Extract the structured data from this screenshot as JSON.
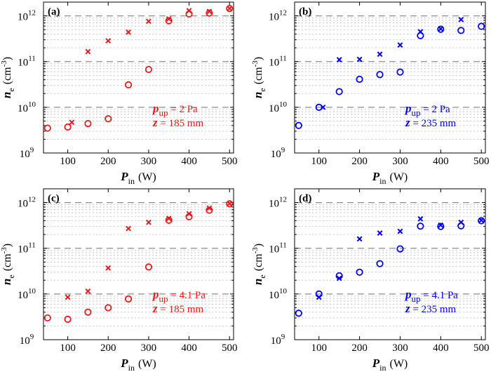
{
  "chart_data": [
    {
      "type": "scatter",
      "panel_label": "(a)",
      "color": "#e41a1c",
      "xlabel": {
        "main": "P",
        "sub": "in",
        "unit": "(W)"
      },
      "ylabel": {
        "main": "n",
        "sub": "e",
        "unit_open": "(cm",
        "unit_sup": "-3",
        "unit_close": ")"
      },
      "xlim": [
        40,
        510
      ],
      "ylim": [
        1000000000.0,
        2000000000000.0
      ],
      "yscale": "log",
      "xticks": [
        "100",
        "200",
        "300",
        "400",
        "500"
      ],
      "yticks": [
        {
          "base": "10",
          "exp": "9"
        },
        {
          "base": "10",
          "exp": "10"
        },
        {
          "base": "10",
          "exp": "11"
        },
        {
          "base": "10",
          "exp": "12"
        }
      ],
      "grid": true,
      "annotation": {
        "p_main": "p",
        "p_sub": "up",
        "p_value": " = 2 Pa",
        "z_main": "z",
        "z_value": " = 185 mm"
      },
      "series": [
        {
          "marker": "x",
          "points": [
            [
              110,
              4700000000.0
            ],
            [
              150,
              165000000000.0
            ],
            [
              200,
              285000000000.0
            ],
            [
              250,
              440000000000.0
            ],
            [
              300,
              760000000000.0
            ],
            [
              350,
              860000000000.0
            ],
            [
              400,
              1300000000000.0
            ],
            [
              450,
              1250000000000.0
            ],
            [
              500,
              1450000000000.0
            ]
          ]
        },
        {
          "marker": "o",
          "points": [
            [
              50,
              3500000000.0
            ],
            [
              100,
              3700000000.0
            ],
            [
              150,
              4400000000.0
            ],
            [
              200,
              5600000000.0
            ],
            [
              250,
              31000000000.0
            ],
            [
              300,
              67000000000.0
            ],
            [
              350,
              780000000000.0
            ],
            [
              400,
              1100000000000.0
            ],
            [
              450,
              1150000000000.0
            ],
            [
              500,
              1450000000000.0
            ]
          ]
        }
      ]
    },
    {
      "type": "scatter",
      "panel_label": "(b)",
      "color": "#0000ee",
      "xlabel": {
        "main": "P",
        "sub": "in",
        "unit": "(W)"
      },
      "ylabel": {
        "main": "n",
        "sub": "e",
        "unit_open": "(cm",
        "unit_sup": "-3",
        "unit_close": ")"
      },
      "xlim": [
        40,
        510
      ],
      "ylim": [
        1000000000.0,
        2000000000000.0
      ],
      "yscale": "log",
      "xticks": [
        "100",
        "200",
        "300",
        "400",
        "500"
      ],
      "yticks": [
        {
          "base": "10",
          "exp": "9"
        },
        {
          "base": "10",
          "exp": "10"
        },
        {
          "base": "10",
          "exp": "11"
        },
        {
          "base": "10",
          "exp": "12"
        }
      ],
      "grid": true,
      "annotation": {
        "p_main": "p",
        "p_sub": "up",
        "p_value": " = 2 Pa",
        "z_main": "z",
        "z_value": " = 235 mm"
      },
      "series": [
        {
          "marker": "x",
          "points": [
            [
              110,
              10000000000.0
            ],
            [
              150,
              110000000000.0
            ],
            [
              200,
              112000000000.0
            ],
            [
              250,
              145000000000.0
            ],
            [
              300,
              230000000000.0
            ],
            [
              350,
              450000000000.0
            ],
            [
              400,
              520000000000.0
            ],
            [
              450,
              830000000000.0
            ]
          ]
        },
        {
          "marker": "o",
          "points": [
            [
              50,
              4000000000.0
            ],
            [
              100,
              10000000000.0
            ],
            [
              150,
              22000000000.0
            ],
            [
              200,
              41000000000.0
            ],
            [
              250,
              52000000000.0
            ],
            [
              300,
              59000000000.0
            ],
            [
              350,
              370000000000.0
            ],
            [
              400,
              510000000000.0
            ],
            [
              450,
              480000000000.0
            ],
            [
              500,
              590000000000.0
            ]
          ]
        }
      ]
    },
    {
      "type": "scatter",
      "panel_label": "(c)",
      "color": "#e41a1c",
      "xlabel": {
        "main": "P",
        "sub": "in",
        "unit": "(W)"
      },
      "ylabel": {
        "main": "n",
        "sub": "e",
        "unit_open": "(cm",
        "unit_sup": "-3",
        "unit_close": ")"
      },
      "xlim": [
        40,
        510
      ],
      "ylim": [
        1000000000.0,
        2000000000000.0
      ],
      "yscale": "log",
      "xticks": [
        "100",
        "200",
        "300",
        "400",
        "500"
      ],
      "yticks": [
        {
          "base": "10",
          "exp": "9"
        },
        {
          "base": "10",
          "exp": "10"
        },
        {
          "base": "10",
          "exp": "11"
        },
        {
          "base": "10",
          "exp": "12"
        }
      ],
      "grid": true,
      "annotation": {
        "p_main": "p",
        "p_sub": "up",
        "p_value": " = 4.1 Pa",
        "z_main": "z",
        "z_value": " = 185 mm"
      },
      "series": [
        {
          "marker": "x",
          "points": [
            [
              100,
              8500000000.0
            ],
            [
              150,
              11500000000.0
            ],
            [
              200,
              37000000000.0
            ],
            [
              250,
              270000000000.0
            ],
            [
              300,
              370000000000.0
            ],
            [
              350,
              450000000000.0
            ],
            [
              400,
              570000000000.0
            ],
            [
              450,
              760000000000.0
            ],
            [
              500,
              950000000000.0
            ]
          ]
        },
        {
          "marker": "o",
          "points": [
            [
              50,
              3000000000.0
            ],
            [
              100,
              2800000000.0
            ],
            [
              150,
              4000000000.0
            ],
            [
              200,
              5000000000.0
            ],
            [
              250,
              7800000000.0
            ],
            [
              300,
              39000000000.0
            ],
            [
              350,
              410000000000.0
            ],
            [
              400,
              490000000000.0
            ],
            [
              450,
              680000000000.0
            ],
            [
              500,
              940000000000.0
            ]
          ]
        }
      ]
    },
    {
      "type": "scatter",
      "panel_label": "(d)",
      "color": "#0000ee",
      "xlabel": {
        "main": "P",
        "sub": "in",
        "unit": "(W)"
      },
      "ylabel": {
        "main": "n",
        "sub": "e",
        "unit_open": "(cm",
        "unit_sup": "-3",
        "unit_close": ")"
      },
      "xlim": [
        40,
        510
      ],
      "ylim": [
        1000000000.0,
        2000000000000.0
      ],
      "yscale": "log",
      "xticks": [
        "100",
        "200",
        "300",
        "400",
        "500"
      ],
      "yticks": [
        {
          "base": "10",
          "exp": "9"
        },
        {
          "base": "10",
          "exp": "10"
        },
        {
          "base": "10",
          "exp": "11"
        },
        {
          "base": "10",
          "exp": "12"
        }
      ],
      "grid": true,
      "annotation": {
        "p_main": "p",
        "p_sub": "up",
        "p_value": " = 4.1 Pa",
        "z_main": "z",
        "z_value": " = 235 mm"
      },
      "series": [
        {
          "marker": "x",
          "points": [
            [
              100,
              8500000000.0
            ],
            [
              150,
              22000000000.0
            ],
            [
              200,
              160000000000.0
            ],
            [
              250,
              215000000000.0
            ],
            [
              300,
              235000000000.0
            ],
            [
              350,
              440000000000.0
            ],
            [
              400,
              320000000000.0
            ],
            [
              450,
              370000000000.0
            ],
            [
              500,
              410000000000.0
            ]
          ]
        },
        {
          "marker": "o",
          "points": [
            [
              50,
              3800000000.0
            ],
            [
              100,
              10000000000.0
            ],
            [
              150,
              25000000000.0
            ],
            [
              200,
              30000000000.0
            ],
            [
              250,
              46000000000.0
            ],
            [
              300,
              97000000000.0
            ],
            [
              350,
              305000000000.0
            ],
            [
              400,
              300000000000.0
            ],
            [
              450,
              310000000000.0
            ],
            [
              500,
              400000000000.0
            ]
          ]
        }
      ]
    }
  ]
}
